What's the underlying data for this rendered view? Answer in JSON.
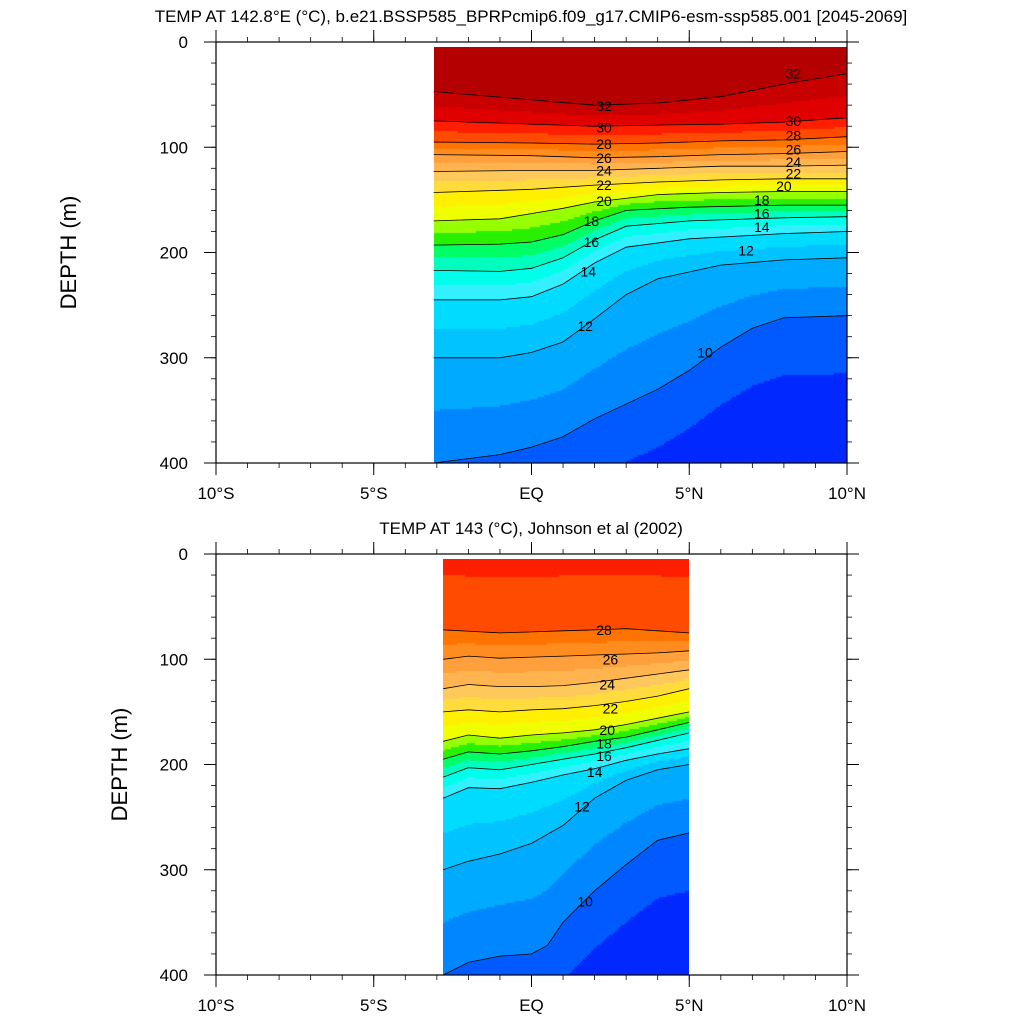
{
  "chart_data": [
    {
      "type": "contour",
      "title": "TEMP AT 142.8°E (°C), b.e21.BSSP585_BPRPcmip6.f09_g17.CMIP6-esm-ssp585.001 [2045-2069]",
      "ylabel": "DEPTH (m)",
      "xlabel": "",
      "xlim": [
        -10,
        10
      ],
      "ylim": [
        400,
        0
      ],
      "y_reversed": true,
      "x_ticks": [
        -10,
        -5,
        0,
        5,
        10
      ],
      "x_tick_labels": [
        "10°S",
        "5°S",
        "EQ",
        "5°N",
        "10°N"
      ],
      "y_ticks": [
        0,
        100,
        200,
        300,
        400
      ],
      "y_tick_labels": [
        "0",
        "100",
        "200",
        "300",
        "400"
      ],
      "data_x_range": [
        -3.1,
        10
      ],
      "contour_interval": 1,
      "contour_lines": [
        {
          "level": 32,
          "points": [
            [
              -3.1,
              47
            ],
            [
              0,
              55
            ],
            [
              2,
              60
            ],
            [
              4,
              58
            ],
            [
              6,
              52
            ],
            [
              8,
              40
            ],
            [
              10,
              30
            ]
          ]
        },
        {
          "level": 30,
          "points": [
            [
              -3.1,
              75
            ],
            [
              0,
              78
            ],
            [
              2,
              80
            ],
            [
              4,
              79
            ],
            [
              6,
              78
            ],
            [
              8,
              76
            ],
            [
              10,
              72
            ]
          ]
        },
        {
          "level": 28,
          "points": [
            [
              -3.1,
              95
            ],
            [
              0,
              96
            ],
            [
              2,
              97
            ],
            [
              4,
              96
            ],
            [
              6,
              94
            ],
            [
              8,
              93
            ],
            [
              10,
              90
            ]
          ]
        },
        {
          "level": 26,
          "points": [
            [
              -3.1,
              107
            ],
            [
              0,
              108
            ],
            [
              2,
              110
            ],
            [
              4,
              109
            ],
            [
              6,
              107
            ],
            [
              8,
              106
            ],
            [
              10,
              104
            ]
          ]
        },
        {
          "level": 24,
          "points": [
            [
              -3.1,
              123
            ],
            [
              0,
              122
            ],
            [
              2,
              122
            ],
            [
              4,
              120
            ],
            [
              6,
              118
            ],
            [
              8,
              118
            ],
            [
              10,
              117
            ]
          ]
        },
        {
          "level": 22,
          "points": [
            [
              -3.1,
              143
            ],
            [
              0,
              140
            ],
            [
              2,
              136
            ],
            [
              4,
              133
            ],
            [
              6,
              131
            ],
            [
              8,
              130
            ],
            [
              10,
              130
            ]
          ]
        },
        {
          "level": 20,
          "points": [
            [
              -3.1,
              170
            ],
            [
              -1,
              168
            ],
            [
              0,
              163
            ],
            [
              1,
              158
            ],
            [
              2,
              152
            ],
            [
              4,
              145
            ],
            [
              6,
              143
            ],
            [
              8,
              142
            ],
            [
              10,
              142
            ]
          ]
        },
        {
          "level": 18,
          "points": [
            [
              -3.1,
              193
            ],
            [
              -1,
              192
            ],
            [
              0,
              190
            ],
            [
              1,
              183
            ],
            [
              2,
              170
            ],
            [
              3,
              160
            ],
            [
              5,
              157
            ],
            [
              8,
              155
            ],
            [
              10,
              155
            ]
          ]
        },
        {
          "level": 16,
          "points": [
            [
              -3.1,
              217
            ],
            [
              -1,
              218
            ],
            [
              0,
              215
            ],
            [
              1,
              205
            ],
            [
              2,
              188
            ],
            [
              3,
              175
            ],
            [
              5,
              170
            ],
            [
              8,
              167
            ],
            [
              10,
              166
            ]
          ]
        },
        {
          "level": 14,
          "points": [
            [
              -3.1,
              245
            ],
            [
              -1,
              245
            ],
            [
              0,
              242
            ],
            [
              1,
              230
            ],
            [
              2,
              210
            ],
            [
              3,
              195
            ],
            [
              5,
              187
            ],
            [
              8,
              182
            ],
            [
              10,
              180
            ]
          ]
        },
        {
          "level": 12,
          "points": [
            [
              -3.1,
              300
            ],
            [
              -1,
              300
            ],
            [
              0,
              295
            ],
            [
              1,
              285
            ],
            [
              2,
              263
            ],
            [
              3,
              240
            ],
            [
              4,
              225
            ],
            [
              6,
              212
            ],
            [
              8,
              207
            ],
            [
              10,
              205
            ]
          ]
        },
        {
          "level": 10,
          "points": [
            [
              -3.1,
              400
            ],
            [
              -1,
              392
            ],
            [
              0,
              385
            ],
            [
              1,
              375
            ],
            [
              2,
              358
            ],
            [
              4,
              330
            ],
            [
              5,
              312
            ],
            [
              6,
              290
            ],
            [
              7,
              272
            ],
            [
              8,
              262
            ],
            [
              10,
              260
            ]
          ]
        }
      ],
      "contour_labels": [
        {
          "text": "32",
          "x": 8.3,
          "y": 30
        },
        {
          "text": "32",
          "x": 2.3,
          "y": 61
        },
        {
          "text": "30",
          "x": 2.3,
          "y": 81
        },
        {
          "text": "30",
          "x": 8.3,
          "y": 75
        },
        {
          "text": "28",
          "x": 2.3,
          "y": 97
        },
        {
          "text": "28",
          "x": 8.3,
          "y": 89
        },
        {
          "text": "26",
          "x": 2.3,
          "y": 110
        },
        {
          "text": "26",
          "x": 8.3,
          "y": 102
        },
        {
          "text": "24",
          "x": 2.3,
          "y": 122
        },
        {
          "text": "24",
          "x": 8.3,
          "y": 114
        },
        {
          "text": "22",
          "x": 2.3,
          "y": 136
        },
        {
          "text": "22",
          "x": 8.3,
          "y": 125
        },
        {
          "text": "20",
          "x": 2.3,
          "y": 151
        },
        {
          "text": "20",
          "x": 8.0,
          "y": 137
        },
        {
          "text": "18",
          "x": 1.9,
          "y": 170
        },
        {
          "text": "18",
          "x": 7.3,
          "y": 150
        },
        {
          "text": "16",
          "x": 1.9,
          "y": 190
        },
        {
          "text": "16",
          "x": 7.3,
          "y": 163
        },
        {
          "text": "14",
          "x": 1.8,
          "y": 218
        },
        {
          "text": "14",
          "x": 7.3,
          "y": 176
        },
        {
          "text": "12",
          "x": 1.7,
          "y": 270
        },
        {
          "text": "12",
          "x": 6.8,
          "y": 198
        },
        {
          "text": "10",
          "x": 5.5,
          "y": 295
        }
      ]
    },
    {
      "type": "contour",
      "title": "TEMP AT 143 (°C), Johnson et al (2002)",
      "ylabel": "DEPTH (m)",
      "xlabel": "",
      "xlim": [
        -10,
        10
      ],
      "ylim": [
        400,
        0
      ],
      "y_reversed": true,
      "x_ticks": [
        -10,
        -5,
        0,
        5,
        10
      ],
      "x_tick_labels": [
        "10°S",
        "5°S",
        "EQ",
        "5°N",
        "10°N"
      ],
      "y_ticks": [
        0,
        100,
        200,
        300,
        400
      ],
      "y_tick_labels": [
        "0",
        "100",
        "200",
        "300",
        "400"
      ],
      "data_x_range": [
        -2.8,
        5
      ],
      "contour_interval": 1,
      "contour_lines": [
        {
          "level": 28,
          "points": [
            [
              -2.8,
              72
            ],
            [
              -1,
              75
            ],
            [
              0,
              74
            ],
            [
              1,
              73
            ],
            [
              2,
              72
            ],
            [
              3,
              71
            ],
            [
              4,
              73
            ],
            [
              5,
              75
            ]
          ]
        },
        {
          "level": 26,
          "points": [
            [
              -2.8,
              100
            ],
            [
              -2,
              97
            ],
            [
              -1,
              99
            ],
            [
              0,
              98
            ],
            [
              1,
              97
            ],
            [
              2,
              96
            ],
            [
              3,
              95
            ],
            [
              4,
              94
            ],
            [
              5,
              92
            ]
          ]
        },
        {
          "level": 24,
          "points": [
            [
              -2.8,
              128
            ],
            [
              -2,
              124
            ],
            [
              -1,
              126
            ],
            [
              0,
              126
            ],
            [
              1,
              125
            ],
            [
              2,
              122
            ],
            [
              3,
              118
            ],
            [
              4,
              114
            ],
            [
              5,
              110
            ]
          ]
        },
        {
          "level": 22,
          "points": [
            [
              -2.8,
              150
            ],
            [
              -2,
              148
            ],
            [
              -1,
              150
            ],
            [
              0,
              148
            ],
            [
              1,
              147
            ],
            [
              2,
              144
            ],
            [
              3,
              140
            ],
            [
              4,
              135
            ],
            [
              5,
              128
            ]
          ]
        },
        {
          "level": 20,
          "points": [
            [
              -2.8,
              178
            ],
            [
              -2,
              172
            ],
            [
              -1,
              175
            ],
            [
              0,
              172
            ],
            [
              1,
              170
            ],
            [
              2,
              167
            ],
            [
              3,
              162
            ],
            [
              4,
              156
            ],
            [
              5,
              150
            ]
          ]
        },
        {
          "level": 18,
          "points": [
            [
              -2.8,
              195
            ],
            [
              -2,
              188
            ],
            [
              -1,
              190
            ],
            [
              0,
              187
            ],
            [
              1,
              183
            ],
            [
              2,
              178
            ],
            [
              3,
              174
            ],
            [
              4,
              167
            ],
            [
              5,
              160
            ]
          ]
        },
        {
          "level": 16,
          "points": [
            [
              -2.8,
              212
            ],
            [
              -2,
              203
            ],
            [
              -1,
              205
            ],
            [
              0,
              200
            ],
            [
              1,
              195
            ],
            [
              2,
              190
            ],
            [
              3,
              184
            ],
            [
              4,
              177
            ],
            [
              5,
              170
            ]
          ]
        },
        {
          "level": 14,
          "points": [
            [
              -2.8,
              232
            ],
            [
              -2,
              222
            ],
            [
              -1,
              223
            ],
            [
              0,
              217
            ],
            [
              1,
              210
            ],
            [
              2,
              204
            ],
            [
              3,
              196
            ],
            [
              4,
              190
            ],
            [
              5,
              185
            ]
          ]
        },
        {
          "level": 12,
          "points": [
            [
              -2.8,
              300
            ],
            [
              -2,
              292
            ],
            [
              -1,
              285
            ],
            [
              0,
              275
            ],
            [
              1,
              258
            ],
            [
              2,
              232
            ],
            [
              3,
              215
            ],
            [
              4,
              205
            ],
            [
              5,
              200
            ]
          ]
        },
        {
          "level": 10,
          "points": [
            [
              -2.8,
              400
            ],
            [
              -2,
              388
            ],
            [
              -1,
              382
            ],
            [
              0,
              380
            ],
            [
              0.5,
              372
            ],
            [
              1,
              350
            ],
            [
              2,
              320
            ],
            [
              3,
              295
            ],
            [
              4,
              272
            ],
            [
              5,
              265
            ]
          ]
        }
      ],
      "contour_labels": [
        {
          "text": "28",
          "x": 2.3,
          "y": 72
        },
        {
          "text": "26",
          "x": 2.5,
          "y": 100
        },
        {
          "text": "24",
          "x": 2.4,
          "y": 124
        },
        {
          "text": "22",
          "x": 2.5,
          "y": 147
        },
        {
          "text": "20",
          "x": 2.4,
          "y": 167
        },
        {
          "text": "18",
          "x": 2.3,
          "y": 180
        },
        {
          "text": "16",
          "x": 2.3,
          "y": 192
        },
        {
          "text": "14",
          "x": 2.0,
          "y": 207
        },
        {
          "text": "12",
          "x": 1.6,
          "y": 240
        },
        {
          "text": "10",
          "x": 1.7,
          "y": 330
        }
      ]
    }
  ],
  "colors": {
    "color_scale": [
      {
        "min": 32,
        "color": "#b40000"
      },
      {
        "min": 31,
        "color": "#c80000"
      },
      {
        "min": 30,
        "color": "#e00000"
      },
      {
        "min": 29,
        "color": "#ff1e00"
      },
      {
        "min": 28,
        "color": "#ff4b00"
      },
      {
        "min": 27,
        "color": "#ff7300"
      },
      {
        "min": 26,
        "color": "#ff8c1e"
      },
      {
        "min": 25,
        "color": "#ffa03c"
      },
      {
        "min": 24,
        "color": "#ffb450"
      },
      {
        "min": 23,
        "color": "#ffc85a"
      },
      {
        "min": 22,
        "color": "#ffdc3c"
      },
      {
        "min": 21,
        "color": "#fff000"
      },
      {
        "min": 20,
        "color": "#f0ff00"
      },
      {
        "min": 19,
        "color": "#96ff00"
      },
      {
        "min": 18,
        "color": "#28f000"
      },
      {
        "min": 17,
        "color": "#00ff64"
      },
      {
        "min": 16,
        "color": "#00ffbe"
      },
      {
        "min": 15,
        "color": "#00ffeb"
      },
      {
        "min": 14,
        "color": "#32f0ff"
      },
      {
        "min": 13,
        "color": "#00dcff"
      },
      {
        "min": 12,
        "color": "#00c3ff"
      },
      {
        "min": 11,
        "color": "#00aaff"
      },
      {
        "min": 10,
        "color": "#0087ff"
      },
      {
        "min": 9,
        "color": "#005aff"
      },
      {
        "min": -99,
        "color": "#0028ff"
      }
    ],
    "line": "#000000"
  }
}
